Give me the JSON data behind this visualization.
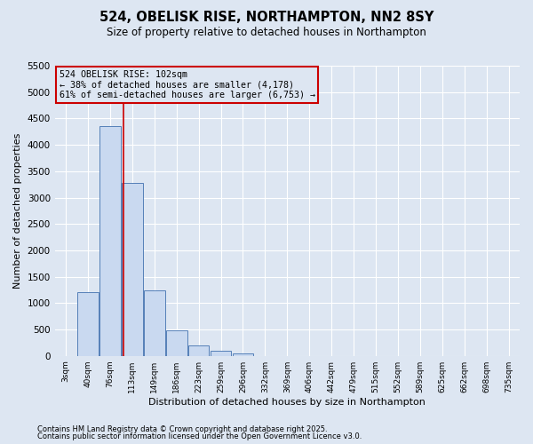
{
  "title": "524, OBELISK RISE, NORTHAMPTON, NN2 8SY",
  "subtitle": "Size of property relative to detached houses in Northampton",
  "xlabel": "Distribution of detached houses by size in Northampton",
  "ylabel": "Number of detached properties",
  "footnote1": "Contains HM Land Registry data © Crown copyright and database right 2025.",
  "footnote2": "Contains public sector information licensed under the Open Government Licence v3.0.",
  "categories": [
    "3sqm",
    "40sqm",
    "76sqm",
    "113sqm",
    "149sqm",
    "186sqm",
    "223sqm",
    "259sqm",
    "296sqm",
    "332sqm",
    "369sqm",
    "406sqm",
    "442sqm",
    "479sqm",
    "515sqm",
    "552sqm",
    "589sqm",
    "625sqm",
    "662sqm",
    "698sqm",
    "735sqm"
  ],
  "values": [
    0,
    1200,
    4350,
    3280,
    1240,
    490,
    200,
    100,
    50,
    0,
    0,
    0,
    0,
    0,
    0,
    0,
    0,
    0,
    0,
    0,
    0
  ],
  "bar_color": "#c9d9f0",
  "bar_edge_color": "#5580b8",
  "background_color": "#dde6f2",
  "grid_color": "#ffffff",
  "vline_x_index": 2.62,
  "vline_color": "#cc0000",
  "annotation_text": "524 OBELISK RISE: 102sqm\n← 38% of detached houses are smaller (4,178)\n61% of semi-detached houses are larger (6,753) →",
  "annotation_box_color": "#cc0000",
  "ylim": [
    0,
    5500
  ],
  "yticks": [
    0,
    500,
    1000,
    1500,
    2000,
    2500,
    3000,
    3500,
    4000,
    4500,
    5000,
    5500
  ]
}
